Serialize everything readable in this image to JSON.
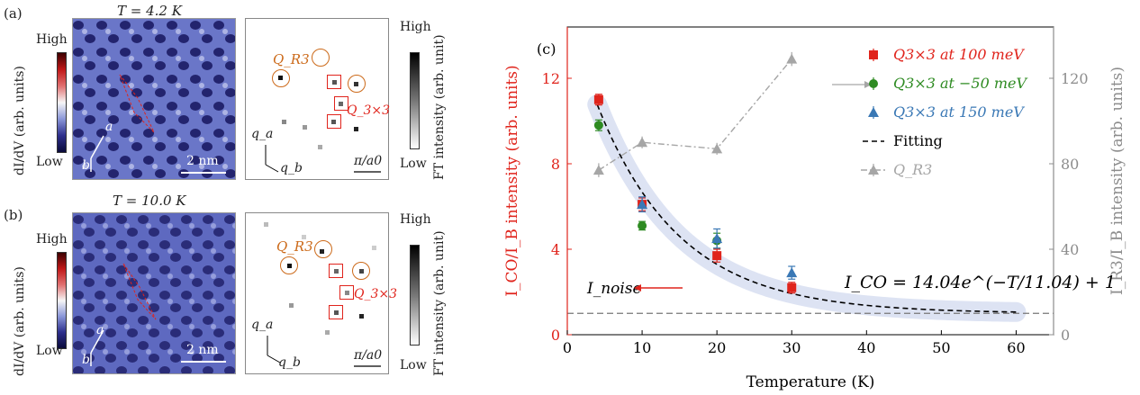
{
  "panel_a": {
    "label": "(a)",
    "temperature": "T = 4.2 K",
    "colorbar_high": "High",
    "colorbar_low": "Low",
    "didv_label": "dI/dV (arb. units)",
    "lattice_a": "a",
    "lattice_b": "b",
    "scale_bar": "2 nm",
    "ft_high": "High",
    "ft_low": "Low",
    "ft_intensity_label": "FT intensity (arb. unit)",
    "q_r3": "Q_R3",
    "q_3x3": "Q_3×3",
    "q_a": "q_a",
    "q_b": "q_b",
    "ft_scale": "π/a0"
  },
  "panel_b": {
    "label": "(b)",
    "temperature": "T = 10.0 K",
    "colorbar_high": "High",
    "colorbar_low": "Low",
    "didv_label": "dI/dV (arb. units)",
    "lattice_a": "a",
    "lattice_b": "b",
    "scale_bar": "2 nm",
    "ft_high": "High",
    "ft_low": "Low",
    "ft_intensity_label": "FT intensity (arb. unit)",
    "q_r3": "Q_R3",
    "q_3x3": "Q_3×3",
    "q_a": "q_a",
    "q_b": "q_b",
    "ft_scale": "π/a0"
  },
  "chart_data": {
    "type": "scatter",
    "panel_label": "(c)",
    "xlabel": "Temperature (K)",
    "ylabel_left": "I_CO/I_B intensity (arb. units)",
    "ylabel_right": "I_R3/I_B intensity (arb. units)",
    "xlim": [
      0,
      65
    ],
    "ylim_left": [
      0,
      14.4
    ],
    "ylim_right": [
      0,
      144
    ],
    "xticks": [
      0,
      10,
      20,
      30,
      40,
      50,
      60
    ],
    "yticks_left": [
      0,
      4,
      8,
      12
    ],
    "yticks_right": [
      0,
      40,
      80,
      120
    ],
    "noise_label": "I_noise",
    "noise_level": 1.0,
    "fit_equation": "I_CO = 14.04e^(−T/11.04) + 1",
    "fit_params": {
      "A": 14.04,
      "tau": 11.04,
      "offset": 1
    },
    "fit_range": [
      4,
      60
    ],
    "left_axis_color": "#e0241c",
    "right_axis_color": "#8c8c8c",
    "series": [
      {
        "name": "Q3×3 at 100 meV",
        "axis": "left",
        "marker": "square",
        "color": "#e0241c",
        "x": [
          4.2,
          10,
          20,
          30
        ],
        "y": [
          11.0,
          6.1,
          3.7,
          2.2
        ],
        "err": [
          0.25,
          0.3,
          0.3,
          0.25
        ]
      },
      {
        "name": "Q3×3 at −50 meV",
        "axis": "left",
        "marker": "circle",
        "color": "#2e8b22",
        "x": [
          4.2,
          10,
          20
        ],
        "y": [
          9.8,
          5.1,
          4.4
        ],
        "err": [
          0.25,
          0.2,
          0.35
        ]
      },
      {
        "name": "Q3×3 at 150 meV",
        "axis": "left",
        "marker": "triangle",
        "color": "#3a78b5",
        "x": [
          10,
          20,
          30
        ],
        "y": [
          6.1,
          4.5,
          2.9
        ],
        "err": [
          0.35,
          0.45,
          0.3
        ]
      },
      {
        "name": "Fitting",
        "axis": "left",
        "marker": "dashed-line",
        "color": "#000000"
      },
      {
        "name": "Q_R3",
        "axis": "right",
        "marker": "triangle",
        "color": "#a6a6a6",
        "x": [
          4.2,
          10,
          20,
          30
        ],
        "y": [
          77,
          90,
          87,
          129
        ],
        "err": [
          2,
          1.5,
          1.5,
          2
        ]
      }
    ]
  }
}
